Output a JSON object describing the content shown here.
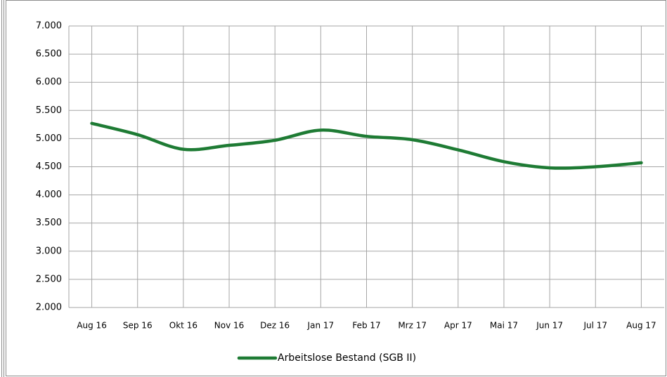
{
  "chart_data": {
    "type": "line",
    "categories": [
      "Aug 16",
      "Sep 16",
      "Okt 16",
      "Nov 16",
      "Dez 16",
      "Jan 17",
      "Feb 17",
      "Mrz 17",
      "Apr 17",
      "Mai 17",
      "Jun 17",
      "Jul 17",
      "Aug 17"
    ],
    "series": [
      {
        "name": "Arbeitslose Bestand (SGB II)",
        "color": "#1e7b34",
        "values": [
          5270,
          5070,
          4810,
          4880,
          4970,
          5150,
          5040,
          4980,
          4800,
          4590,
          4480,
          4500,
          4570
        ]
      }
    ],
    "ylim": [
      2000,
      7000
    ],
    "yticks": [
      {
        "value": 2000,
        "label": "2.000"
      },
      {
        "value": 2500,
        "label": "2.500"
      },
      {
        "value": 3000,
        "label": "3.000"
      },
      {
        "value": 3500,
        "label": "3.500"
      },
      {
        "value": 4000,
        "label": "4.000"
      },
      {
        "value": 4500,
        "label": "4.500"
      },
      {
        "value": 5000,
        "label": "5.000"
      },
      {
        "value": 5500,
        "label": "5.500"
      },
      {
        "value": 6000,
        "label": "6.000"
      },
      {
        "value": 6500,
        "label": "6.500"
      },
      {
        "value": 7000,
        "label": "7.000"
      }
    ],
    "grid": true,
    "legend": "bottom",
    "smooth": true
  }
}
